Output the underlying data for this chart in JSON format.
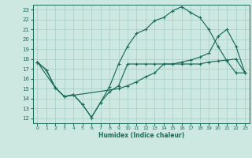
{
  "xlabel": "Humidex (Indice chaleur)",
  "xlim": [
    -0.5,
    23.5
  ],
  "ylim": [
    11.5,
    23.5
  ],
  "xticks": [
    0,
    1,
    2,
    3,
    4,
    5,
    6,
    7,
    8,
    9,
    10,
    11,
    12,
    13,
    14,
    15,
    16,
    17,
    18,
    19,
    20,
    21,
    22,
    23
  ],
  "yticks": [
    12,
    13,
    14,
    15,
    16,
    17,
    18,
    19,
    20,
    21,
    22,
    23
  ],
  "bg_color": "#cce8e0",
  "grid_color": "#a8ccc8",
  "line_color": "#1a6b5a",
  "line1_x": [
    0,
    1,
    2,
    3,
    4,
    5,
    6,
    7,
    8,
    9,
    10,
    11,
    12,
    13,
    14,
    15,
    16,
    17,
    18,
    19,
    20,
    21,
    22,
    23
  ],
  "line1_y": [
    17.7,
    16.9,
    15.1,
    14.2,
    14.4,
    13.4,
    12.1,
    13.6,
    14.7,
    15.3,
    17.5,
    17.5,
    17.5,
    17.5,
    17.5,
    17.5,
    17.5,
    17.5,
    17.5,
    17.7,
    17.8,
    17.9,
    18.0,
    16.6
  ],
  "line2_x": [
    0,
    1,
    2,
    3,
    4,
    5,
    6,
    7,
    8,
    9,
    10,
    11,
    12,
    13,
    14,
    15,
    16,
    17,
    18,
    19,
    20,
    21,
    22,
    23
  ],
  "line2_y": [
    17.7,
    16.9,
    15.1,
    14.2,
    14.4,
    13.4,
    12.1,
    13.6,
    15.2,
    17.5,
    19.3,
    20.6,
    21.0,
    21.9,
    22.2,
    22.9,
    23.3,
    22.7,
    22.2,
    21.0,
    19.3,
    17.8,
    16.6,
    16.6
  ],
  "line3_x": [
    0,
    2,
    3,
    9,
    10,
    11,
    12,
    13,
    14,
    15,
    16,
    17,
    18,
    19,
    20,
    21,
    22,
    23
  ],
  "line3_y": [
    17.7,
    15.1,
    14.2,
    15.0,
    15.3,
    15.7,
    16.2,
    16.6,
    17.5,
    17.5,
    17.7,
    17.9,
    18.2,
    18.6,
    20.3,
    21.0,
    19.3,
    16.6
  ]
}
